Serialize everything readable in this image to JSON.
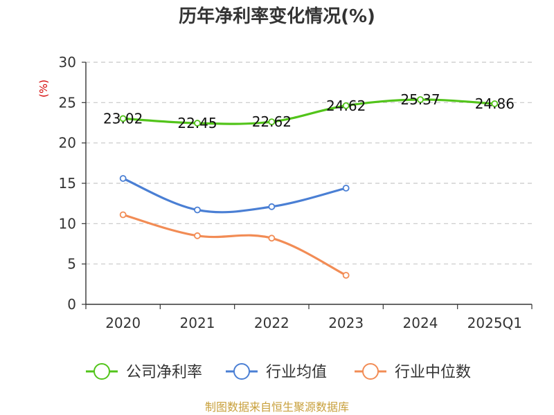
{
  "chart_data": {
    "type": "line",
    "title": "历年净利率变化情况(%)",
    "ylabel": "(%)",
    "categories": [
      "2020",
      "2021",
      "2022",
      "2023",
      "2024",
      "2025Q1"
    ],
    "ylim": [
      0,
      30
    ],
    "yticks": [
      0,
      5,
      10,
      15,
      20,
      25,
      30
    ],
    "grid": true,
    "legend_position": "bottom",
    "series": [
      {
        "name": "公司净利率",
        "color": "#52c41a",
        "values": [
          23.02,
          22.45,
          22.62,
          24.62,
          25.37,
          24.86
        ],
        "labels": [
          "23.02",
          "22.45",
          "22.62",
          "24.62",
          "25.37",
          "24.86"
        ]
      },
      {
        "name": "行业均值",
        "color": "#4a7fd4",
        "values": [
          15.6,
          11.7,
          12.1,
          14.4,
          null,
          null
        ],
        "labels": []
      },
      {
        "name": "行业中位数",
        "color": "#f28c55",
        "values": [
          11.1,
          8.5,
          8.2,
          3.6,
          null,
          null
        ],
        "labels": []
      }
    ]
  },
  "source": "制图数据来自恒生聚源数据库"
}
